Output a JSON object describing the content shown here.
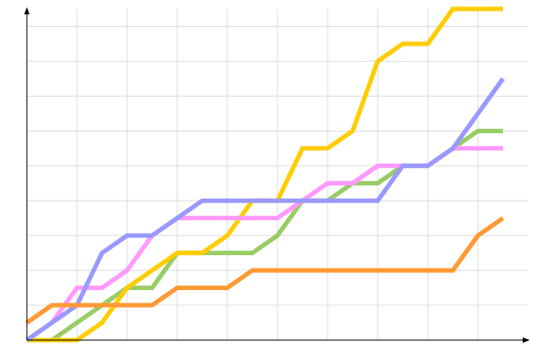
{
  "chart_data": {
    "type": "line",
    "title": "",
    "xlabel": "",
    "ylabel": "",
    "x": [
      0,
      1,
      2,
      3,
      4,
      5,
      6,
      7,
      8,
      9,
      10,
      11,
      12,
      13,
      14,
      15,
      16,
      17,
      18,
      19
    ],
    "xlim": [
      0,
      20
    ],
    "ylim": [
      0,
      19
    ],
    "grid": true,
    "series": [
      {
        "color": "#99cc66",
        "values": [
          0,
          0,
          1,
          2,
          3,
          3,
          5,
          5,
          5,
          5,
          6,
          8,
          8,
          9,
          9,
          10,
          10,
          11,
          12,
          12
        ]
      },
      {
        "color": "#ffcc00",
        "values": [
          0,
          0,
          0,
          1,
          3,
          4,
          5,
          5,
          6,
          8,
          8,
          11,
          11,
          12,
          16,
          17,
          17,
          19,
          19,
          19
        ]
      },
      {
        "color": "#ff99ff",
        "values": [
          0,
          1,
          3,
          3,
          4,
          6,
          7,
          7,
          7,
          7,
          7,
          8,
          9,
          9,
          10,
          10,
          10,
          11,
          11,
          11
        ]
      },
      {
        "color": "#9999ff",
        "values": [
          0,
          1,
          2,
          5,
          6,
          6,
          7,
          8,
          8,
          8,
          8,
          8,
          8,
          8,
          8,
          10,
          10,
          11,
          13,
          15
        ]
      },
      {
        "color": "#ff9933",
        "values": [
          1,
          2,
          2,
          2,
          2,
          2,
          3,
          3,
          3,
          4,
          4,
          4,
          4,
          4,
          4,
          4,
          4,
          4,
          6,
          7
        ]
      }
    ]
  }
}
